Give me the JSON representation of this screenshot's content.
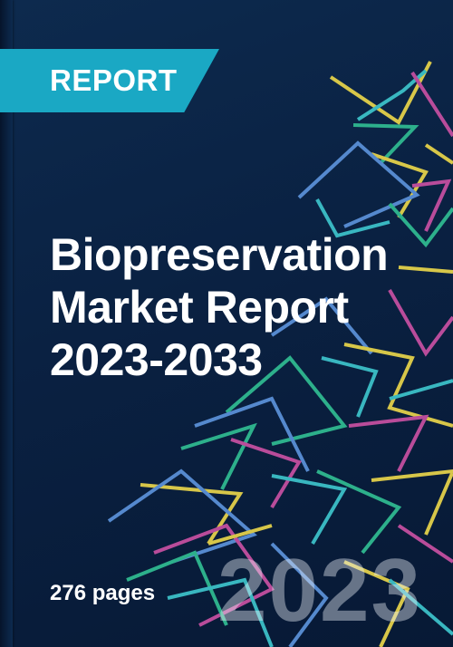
{
  "cover": {
    "badge": "REPORT",
    "title_lines": [
      "Biopreservation",
      "Market Report",
      "2023-2033"
    ],
    "year_watermark": "2023",
    "pages": "276 pages"
  },
  "colors": {
    "background": "#0a2142",
    "badge": "#1aa8c4",
    "line_palette": [
      "#e3d04a",
      "#3cc0c8",
      "#c34fa0",
      "#2fb890",
      "#5a8fd6",
      "#d9526a"
    ]
  }
}
